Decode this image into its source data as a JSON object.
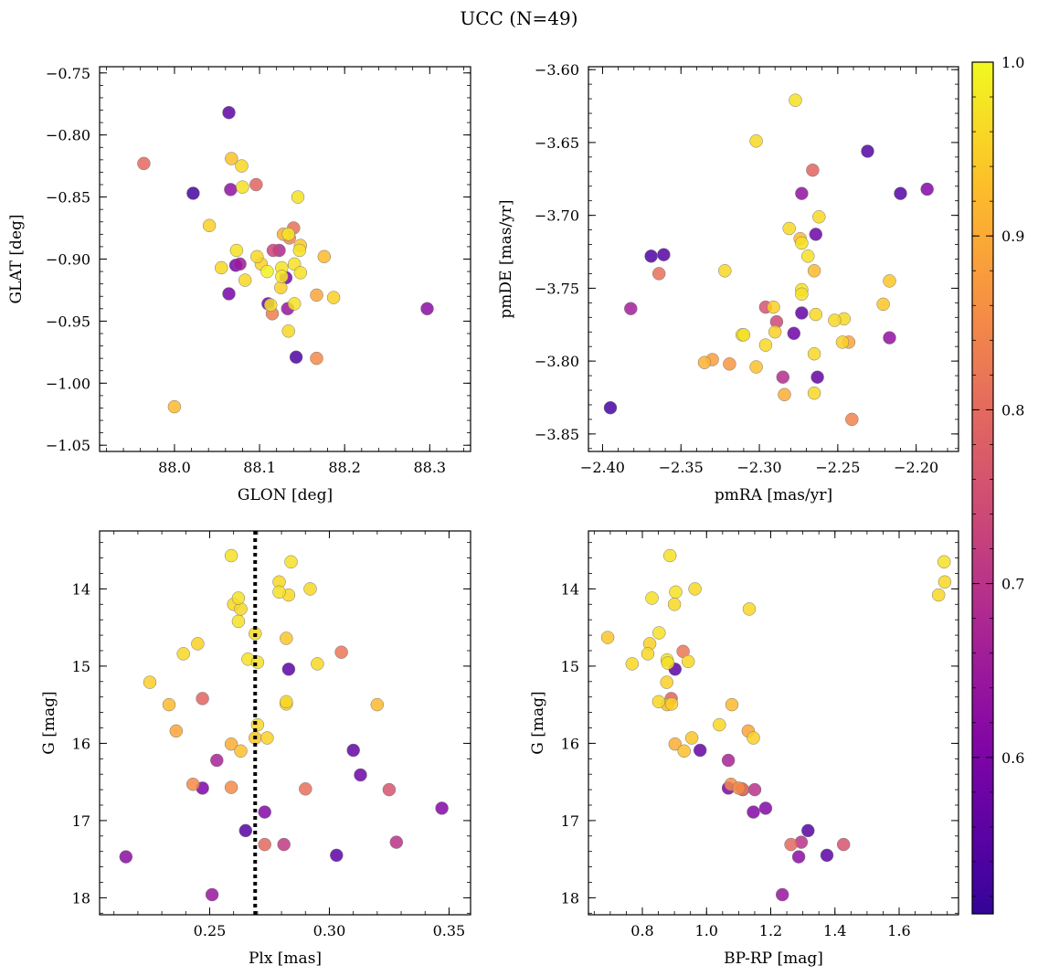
{
  "figure": {
    "title": "UCC (N=49)"
  },
  "colorbar": {
    "ticks": [
      "0.6",
      "0.7",
      "0.8",
      "0.9",
      "1.0"
    ],
    "range": [
      0.51,
      1.0
    ],
    "colormap": "plasma"
  },
  "chart_data": [
    {
      "type": "scatter",
      "id": "sky",
      "title": "",
      "xlabel": "GLON [deg]",
      "ylabel": "GLAT [deg]",
      "xlim": [
        87.912,
        88.348
      ],
      "ylim": [
        -1.055,
        -0.745
      ],
      "invert_y": false,
      "xticks": [
        88.0,
        88.1,
        88.2,
        88.3
      ],
      "xtick_labels": [
        "88.0",
        "88.1",
        "88.2",
        "88.3"
      ],
      "yticks": [
        -1.05,
        -1.0,
        -0.95,
        -0.9,
        -0.85,
        -0.8,
        -0.75
      ],
      "ytick_labels": [
        "−1.05",
        "−1.00",
        "−0.95",
        "−0.90",
        "−0.85",
        "−0.80",
        "−0.75"
      ],
      "x_minor": 0.02,
      "y_minor": 0.01,
      "points": [
        [
          87.964,
          -0.823,
          0.8
        ],
        [
          88.022,
          -0.847,
          0.53
        ],
        [
          88.064,
          -0.782,
          0.56
        ],
        [
          88.041,
          -0.873,
          0.95
        ],
        [
          88.067,
          -0.819,
          0.93
        ],
        [
          88.079,
          -0.825,
          0.96
        ],
        [
          88.066,
          -0.844,
          0.63
        ],
        [
          88.08,
          -0.842,
          0.97
        ],
        [
          88.096,
          -0.84,
          0.79
        ],
        [
          88.145,
          -0.85,
          0.97
        ],
        [
          88.14,
          -0.875,
          0.81
        ],
        [
          88.128,
          -0.88,
          0.9
        ],
        [
          88.135,
          -0.883,
          0.84
        ],
        [
          88.134,
          -0.88,
          0.98
        ],
        [
          88.123,
          -0.893,
          0.68
        ],
        [
          88.116,
          -0.893,
          0.73
        ],
        [
          88.148,
          -0.889,
          0.94
        ],
        [
          88.147,
          -0.893,
          0.97
        ],
        [
          88.176,
          -0.898,
          0.92
        ],
        [
          88.073,
          -0.893,
          0.97
        ],
        [
          88.097,
          -0.898,
          0.96
        ],
        [
          88.102,
          -0.904,
          0.95
        ],
        [
          88.109,
          -0.91,
          0.99
        ],
        [
          88.126,
          -0.907,
          0.97
        ],
        [
          88.126,
          -0.914,
          0.98
        ],
        [
          88.141,
          -0.904,
          0.97
        ],
        [
          88.131,
          -0.915,
          0.6
        ],
        [
          88.148,
          -0.911,
          0.97
        ],
        [
          88.072,
          -0.905,
          0.59
        ],
        [
          88.077,
          -0.904,
          0.65
        ],
        [
          88.055,
          -0.907,
          0.96
        ],
        [
          88.083,
          -0.917,
          0.96
        ],
        [
          88.064,
          -0.928,
          0.59
        ],
        [
          88.125,
          -0.923,
          0.95
        ],
        [
          88.11,
          -0.936,
          0.58
        ],
        [
          88.113,
          -0.937,
          0.97
        ],
        [
          88.141,
          -0.936,
          0.97
        ],
        [
          88.133,
          -0.94,
          0.64
        ],
        [
          88.115,
          -0.944,
          0.83
        ],
        [
          88.167,
          -0.929,
          0.89
        ],
        [
          88.187,
          -0.931,
          0.95
        ],
        [
          88.134,
          -0.958,
          0.96
        ],
        [
          88.143,
          -0.979,
          0.54
        ],
        [
          88.167,
          -0.98,
          0.85
        ],
        [
          88.0,
          -1.019,
          0.92
        ],
        [
          88.297,
          -0.94,
          0.62
        ]
      ]
    },
    {
      "type": "scatter",
      "id": "pm",
      "title": "",
      "xlabel": "pmRA [mas/yr]",
      "ylabel": "pmDE [mas/yr]",
      "xlim": [
        -2.409,
        -2.173
      ],
      "ylim": [
        -3.862,
        -3.598
      ],
      "invert_y": false,
      "xticks": [
        -2.4,
        -2.35,
        -2.3,
        -2.25,
        -2.2
      ],
      "xtick_labels": [
        "−2.40",
        "−2.35",
        "−2.30",
        "−2.25",
        "−2.20"
      ],
      "yticks": [
        -3.85,
        -3.8,
        -3.75,
        -3.7,
        -3.65,
        -3.6
      ],
      "ytick_labels": [
        "−3.85",
        "−3.80",
        "−3.75",
        "−3.70",
        "−3.65",
        "−3.60"
      ],
      "x_minor": 0.01,
      "y_minor": 0.01,
      "points": [
        [
          -2.277,
          -3.621,
          0.97
        ],
        [
          -2.302,
          -3.649,
          0.96
        ],
        [
          -2.231,
          -3.656,
          0.55
        ],
        [
          -2.266,
          -3.669,
          0.79
        ],
        [
          -2.273,
          -3.685,
          0.63
        ],
        [
          -2.21,
          -3.685,
          0.55
        ],
        [
          -2.193,
          -3.682,
          0.61
        ],
        [
          -2.262,
          -3.701,
          0.96
        ],
        [
          -2.281,
          -3.709,
          0.96
        ],
        [
          -2.264,
          -3.713,
          0.58
        ],
        [
          -2.274,
          -3.716,
          0.92
        ],
        [
          -2.273,
          -3.719,
          0.97
        ],
        [
          -2.269,
          -3.728,
          0.97
        ],
        [
          -2.369,
          -3.728,
          0.54
        ],
        [
          -2.361,
          -3.727,
          0.55
        ],
        [
          -2.322,
          -3.738,
          0.96
        ],
        [
          -2.265,
          -3.738,
          0.92
        ],
        [
          -2.364,
          -3.74,
          0.81
        ],
        [
          -2.217,
          -3.745,
          0.94
        ],
        [
          -2.273,
          -3.751,
          0.97
        ],
        [
          -2.273,
          -3.754,
          0.97
        ],
        [
          -2.382,
          -3.764,
          0.66
        ],
        [
          -2.296,
          -3.763,
          0.76
        ],
        [
          -2.291,
          -3.763,
          0.95
        ],
        [
          -2.264,
          -3.768,
          0.96
        ],
        [
          -2.273,
          -3.767,
          0.57
        ],
        [
          -2.246,
          -3.771,
          0.96
        ],
        [
          -2.252,
          -3.772,
          0.96
        ],
        [
          -2.221,
          -3.761,
          0.94
        ],
        [
          -2.289,
          -3.773,
          0.74
        ],
        [
          -2.311,
          -3.782,
          0.97
        ],
        [
          -2.31,
          -3.782,
          0.97
        ],
        [
          -2.29,
          -3.78,
          0.95
        ],
        [
          -2.278,
          -3.781,
          0.58
        ],
        [
          -2.217,
          -3.784,
          0.63
        ],
        [
          -2.247,
          -3.787,
          0.95
        ],
        [
          -2.243,
          -3.787,
          0.89
        ],
        [
          -2.296,
          -3.789,
          0.96
        ],
        [
          -2.265,
          -3.795,
          0.96
        ],
        [
          -2.335,
          -3.801,
          0.91
        ],
        [
          -2.33,
          -3.799,
          0.88
        ],
        [
          -2.319,
          -3.802,
          0.87
        ],
        [
          -2.302,
          -3.804,
          0.93
        ],
        [
          -2.285,
          -3.811,
          0.69
        ],
        [
          -2.263,
          -3.811,
          0.57
        ],
        [
          -2.284,
          -3.823,
          0.9
        ],
        [
          -2.265,
          -3.822,
          0.96
        ],
        [
          -2.241,
          -3.84,
          0.84
        ],
        [
          -2.395,
          -3.832,
          0.53
        ]
      ]
    },
    {
      "type": "scatter",
      "id": "plx",
      "title": "",
      "xlabel": "Plx [mas]",
      "ylabel": "G [mag]",
      "xlim": [
        0.204,
        0.359
      ],
      "ylim": [
        13.25,
        18.22
      ],
      "invert_y": true,
      "xticks": [
        0.25,
        0.3,
        0.35
      ],
      "xtick_labels": [
        "0.25",
        "0.30",
        "0.35"
      ],
      "yticks": [
        14,
        15,
        16,
        17,
        18
      ],
      "ytick_labels": [
        "14",
        "15",
        "16",
        "17",
        "18"
      ],
      "x_minor": 0.01,
      "y_minor": 0.2,
      "vline": 0.269,
      "points": [
        [
          0.259,
          13.57,
          0.97
        ],
        [
          0.284,
          13.65,
          0.97
        ],
        [
          0.279,
          13.91,
          0.96
        ],
        [
          0.292,
          14.0,
          0.96
        ],
        [
          0.279,
          14.04,
          0.97
        ],
        [
          0.283,
          14.08,
          0.96
        ],
        [
          0.262,
          14.12,
          0.97
        ],
        [
          0.26,
          14.2,
          0.96
        ],
        [
          0.263,
          14.26,
          0.96
        ],
        [
          0.262,
          14.42,
          0.97
        ],
        [
          0.269,
          14.58,
          0.96
        ],
        [
          0.282,
          14.64,
          0.94
        ],
        [
          0.245,
          14.71,
          0.95
        ],
        [
          0.239,
          14.84,
          0.96
        ],
        [
          0.305,
          14.82,
          0.82
        ],
        [
          0.266,
          14.91,
          0.97
        ],
        [
          0.27,
          14.95,
          0.97
        ],
        [
          0.295,
          14.97,
          0.96
        ],
        [
          0.283,
          15.04,
          0.56
        ],
        [
          0.225,
          15.21,
          0.95
        ],
        [
          0.247,
          15.42,
          0.79
        ],
        [
          0.282,
          15.46,
          0.96
        ],
        [
          0.282,
          15.49,
          0.95
        ],
        [
          0.233,
          15.5,
          0.92
        ],
        [
          0.32,
          15.5,
          0.92
        ],
        [
          0.27,
          15.76,
          0.96
        ],
        [
          0.236,
          15.84,
          0.89
        ],
        [
          0.269,
          15.93,
          0.94
        ],
        [
          0.274,
          15.93,
          0.95
        ],
        [
          0.259,
          16.01,
          0.9
        ],
        [
          0.263,
          16.1,
          0.93
        ],
        [
          0.31,
          16.09,
          0.57
        ],
        [
          0.253,
          16.22,
          0.67
        ],
        [
          0.313,
          16.41,
          0.58
        ],
        [
          0.243,
          16.53,
          0.85
        ],
        [
          0.247,
          16.58,
          0.6
        ],
        [
          0.259,
          16.57,
          0.85
        ],
        [
          0.29,
          16.59,
          0.81
        ],
        [
          0.325,
          16.6,
          0.76
        ],
        [
          0.273,
          16.89,
          0.61
        ],
        [
          0.347,
          16.84,
          0.61
        ],
        [
          0.265,
          17.13,
          0.55
        ],
        [
          0.273,
          17.31,
          0.8
        ],
        [
          0.281,
          17.31,
          0.71
        ],
        [
          0.328,
          17.28,
          0.7
        ],
        [
          0.215,
          17.47,
          0.62
        ],
        [
          0.303,
          17.45,
          0.56
        ],
        [
          0.251,
          17.96,
          0.64
        ]
      ]
    },
    {
      "type": "scatter",
      "id": "cmd",
      "title": "",
      "xlabel": "BP-RP [mag]",
      "ylabel": "G [mag]",
      "xlim": [
        0.632,
        1.785
      ],
      "ylim": [
        13.25,
        18.22
      ],
      "invert_y": true,
      "xticks": [
        0.8,
        1.0,
        1.2,
        1.4,
        1.6
      ],
      "xtick_labels": [
        "0.8",
        "1.0",
        "1.2",
        "1.4",
        "1.6"
      ],
      "yticks": [
        14,
        15,
        16,
        17,
        18
      ],
      "ytick_labels": [
        "14",
        "15",
        "16",
        "17",
        "18"
      ],
      "x_minor": 0.05,
      "y_minor": 0.2,
      "points": [
        [
          0.886,
          13.57,
          0.97
        ],
        [
          1.74,
          13.65,
          0.97
        ],
        [
          1.742,
          13.91,
          0.96
        ],
        [
          0.964,
          14.0,
          0.96
        ],
        [
          0.904,
          14.04,
          0.97
        ],
        [
          1.723,
          14.08,
          0.96
        ],
        [
          0.83,
          14.12,
          0.97
        ],
        [
          0.9,
          14.2,
          0.96
        ],
        [
          1.133,
          14.26,
          0.96
        ],
        [
          0.852,
          14.57,
          0.97
        ],
        [
          0.692,
          14.63,
          0.94
        ],
        [
          0.823,
          14.71,
          0.95
        ],
        [
          0.817,
          14.84,
          0.96
        ],
        [
          0.927,
          14.81,
          0.82
        ],
        [
          0.877,
          14.92,
          0.97
        ],
        [
          0.879,
          14.96,
          0.97
        ],
        [
          0.943,
          14.94,
          0.96
        ],
        [
          0.768,
          14.97,
          0.96
        ],
        [
          0.902,
          15.04,
          0.56
        ],
        [
          0.876,
          15.21,
          0.95
        ],
        [
          0.89,
          15.42,
          0.79
        ],
        [
          0.851,
          15.46,
          0.96
        ],
        [
          0.891,
          15.49,
          0.95
        ],
        [
          0.877,
          15.5,
          0.92
        ],
        [
          1.079,
          15.5,
          0.92
        ],
        [
          1.04,
          15.76,
          0.96
        ],
        [
          1.13,
          15.84,
          0.89
        ],
        [
          0.954,
          15.93,
          0.94
        ],
        [
          1.146,
          15.93,
          0.95
        ],
        [
          0.902,
          16.01,
          0.9
        ],
        [
          0.93,
          16.1,
          0.93
        ],
        [
          0.98,
          16.09,
          0.57
        ],
        [
          1.068,
          16.22,
          0.67
        ],
        [
          1.076,
          16.53,
          0.85
        ],
        [
          1.068,
          16.58,
          0.6
        ],
        [
          1.1,
          16.58,
          0.85
        ],
        [
          1.111,
          16.59,
          0.81
        ],
        [
          1.113,
          16.6,
          0.76
        ],
        [
          1.15,
          16.6,
          0.7
        ],
        [
          1.146,
          16.89,
          0.61
        ],
        [
          1.184,
          16.84,
          0.61
        ],
        [
          1.316,
          17.13,
          0.55
        ],
        [
          1.263,
          17.31,
          0.8
        ],
        [
          1.295,
          17.28,
          0.7
        ],
        [
          1.427,
          17.31,
          0.76
        ],
        [
          1.287,
          17.47,
          0.62
        ],
        [
          1.375,
          17.45,
          0.56
        ],
        [
          1.236,
          17.96,
          0.64
        ]
      ]
    }
  ]
}
